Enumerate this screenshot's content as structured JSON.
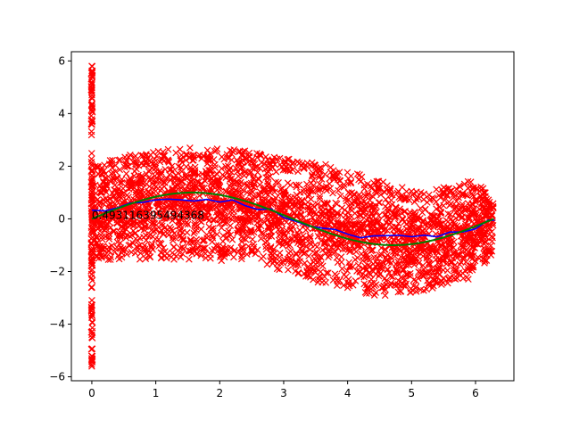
{
  "chart_data": {
    "type": "scatter",
    "title": "",
    "xlabel": "",
    "ylabel": "",
    "xlim": [
      -0.32,
      6.6
    ],
    "ylim": [
      -6.15,
      6.35
    ],
    "xticks": [
      0,
      1,
      2,
      3,
      4,
      5,
      6
    ],
    "yticks": [
      -6,
      -4,
      -2,
      0,
      2,
      4,
      6
    ],
    "xtick_labels": [
      "0",
      "1",
      "2",
      "3",
      "4",
      "5",
      "6"
    ],
    "ytick_labels": [
      "−6",
      "−4",
      "−2",
      "0",
      "2",
      "4",
      "6"
    ],
    "grid": false,
    "legend": "none",
    "annotation": {
      "text": "0.493116395494368",
      "x": 0.0,
      "y": 0.0
    },
    "scatter_marker": "x",
    "colors": {
      "scatter": "#ff0000",
      "fit_curve": "#0000ff",
      "true_curve": "#008000",
      "axes": "#000000"
    },
    "series": [
      {
        "kind": "scatter",
        "description": "noisy samples of sin(x); dense band approx. sin(x) ± 2, plus a tall column of points at x = 0",
        "x_range": [
          0.0,
          6.28
        ],
        "envelope": {
          "x": [
            0.0,
            0.5,
            1.0,
            1.5,
            2.0,
            2.5,
            3.0,
            3.5,
            4.0,
            4.5,
            5.0,
            5.5,
            6.0,
            6.3
          ],
          "upper": [
            2.0,
            2.4,
            2.6,
            2.7,
            2.7,
            2.6,
            2.3,
            2.2,
            1.8,
            1.5,
            1.1,
            1.2,
            1.5,
            0.8
          ],
          "lower": [
            -1.5,
            -1.6,
            -1.5,
            -1.6,
            -1.6,
            -1.5,
            -2.0,
            -2.4,
            -2.7,
            -3.0,
            -2.8,
            -2.6,
            -2.2,
            -1.2
          ]
        },
        "x0_column": {
          "x": 0.0,
          "min": -5.6,
          "max": 5.8
        }
      },
      {
        "kind": "line",
        "x": [
          0.0,
          0.2,
          0.4,
          0.6,
          0.8,
          1.0,
          1.2,
          1.4,
          1.6,
          1.8,
          2.0,
          2.2,
          2.4,
          2.6,
          2.8,
          3.0,
          3.2,
          3.4,
          3.6,
          3.8,
          4.0,
          4.2,
          4.4,
          4.6,
          4.8,
          5.0,
          5.2,
          5.4,
          5.6,
          5.8,
          6.0,
          6.2,
          6.3
        ],
        "y": [
          0.33,
          0.3,
          0.42,
          0.6,
          0.63,
          0.72,
          0.75,
          0.72,
          0.68,
          0.74,
          0.64,
          0.72,
          0.5,
          0.35,
          0.38,
          0.05,
          -0.1,
          -0.28,
          -0.35,
          -0.4,
          -0.58,
          -0.72,
          -0.65,
          -0.64,
          -0.62,
          -0.68,
          -0.62,
          -0.68,
          -0.5,
          -0.5,
          -0.38,
          -0.05,
          -0.05
        ]
      },
      {
        "kind": "line",
        "function": "sin(x)",
        "x_range": [
          0.0,
          6.28
        ]
      }
    ]
  }
}
